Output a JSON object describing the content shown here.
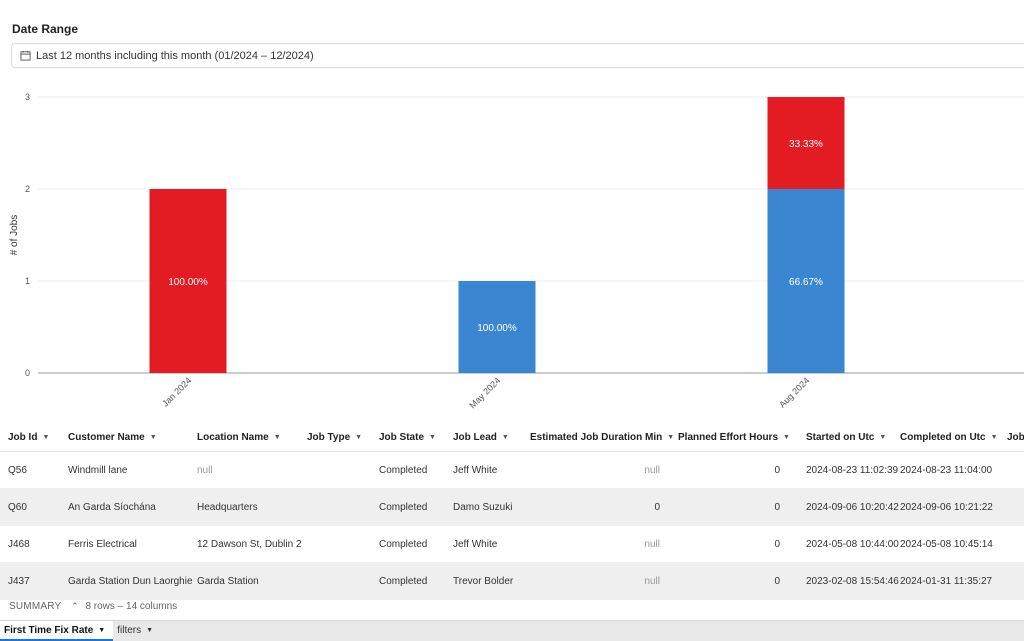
{
  "filter": {
    "label": "Date Range",
    "value": "Last 12 months including this month (01/2024 – 12/2024)"
  },
  "chart_data": {
    "type": "bar",
    "stacked": true,
    "categories": [
      "Jan 2024",
      "May 2024",
      "Aug 2024"
    ],
    "series": [
      {
        "color": "#3b86d0",
        "values": [
          0,
          1,
          2
        ],
        "labels": [
          "",
          "100.00%",
          "66.67%"
        ]
      },
      {
        "color": "#e31b23",
        "values": [
          2,
          0,
          1
        ],
        "labels": [
          "100.00%",
          "",
          "33.33%"
        ]
      }
    ],
    "ylabel": "# of Jobs",
    "ylim": [
      0,
      3
    ],
    "yticks": [
      "0",
      "1",
      "2",
      "3"
    ],
    "grid": true
  },
  "table": {
    "columns": [
      "Job Id",
      "Customer Name",
      "Location Name",
      "Job Type",
      "Job State",
      "Job Lead",
      "Estimated Job Duration Min",
      "Planned Effort Hours",
      "Started on Utc",
      "Completed on Utc",
      "Job"
    ],
    "rows": [
      [
        "Q56",
        "Windmill lane",
        "null",
        "",
        "Completed",
        "Jeff White",
        "null",
        "0",
        "2024-08-23 11:02:39",
        "2024-08-23 11:04:00"
      ],
      [
        "Q60",
        "An Garda Síochána",
        "Headquarters",
        "",
        "Completed",
        "Damo Suzuki",
        "0",
        "0",
        "2024-09-06 10:20:42",
        "2024-09-06 10:21:22"
      ],
      [
        "J468",
        "Ferris Electrical",
        "12 Dawson St, Dublin 2",
        "",
        "Completed",
        "Jeff White",
        "null",
        "0",
        "2024-05-08 10:44:00",
        "2024-05-08 10:45:14"
      ],
      [
        "J437",
        "Garda Station Dun Laorghie",
        "Garda Station",
        "",
        "Completed",
        "Trevor Bolder",
        "null",
        "0",
        "2023-02-08 15:54:46",
        "2024-01-31 11:35:27"
      ]
    ]
  },
  "summary": {
    "label": "SUMMARY",
    "info": "8 rows – 14 columns"
  },
  "tabs": [
    {
      "label": "First Time Fix Rate",
      "active": true
    },
    {
      "label": "filters",
      "active": false
    }
  ],
  "colors": {
    "blue": "#3b86d0",
    "red": "#e31b23",
    "accent": "#1a73e8"
  }
}
